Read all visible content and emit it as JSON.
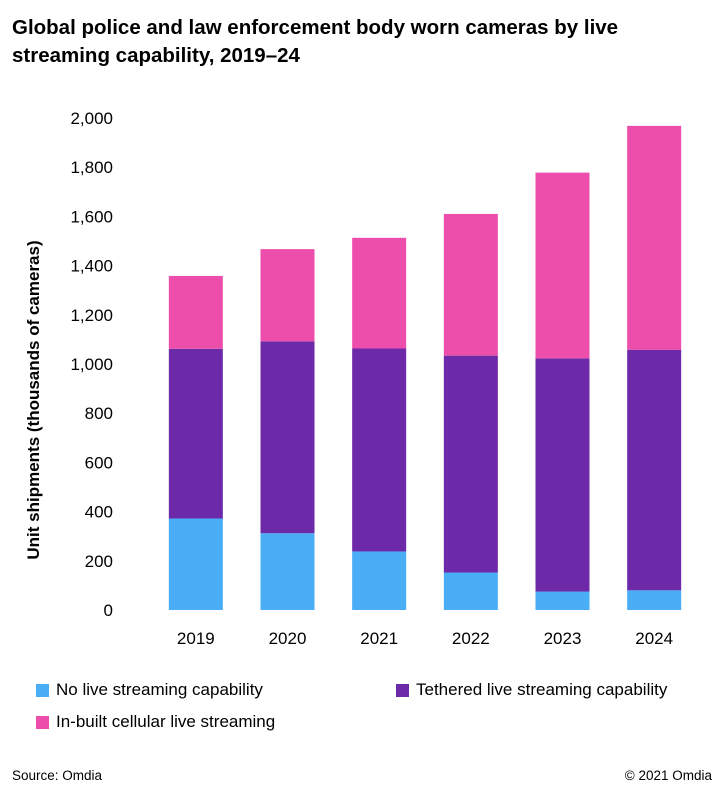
{
  "chart_data": {
    "type": "bar",
    "stacked": true,
    "title": "Global police and law enforcement body worn cameras by live streaming capability, 2019–24",
    "xlabel": "",
    "ylabel": "Unit shipments (thousands of cameras)",
    "ylim": [
      0,
      2000
    ],
    "yticks": [
      "0",
      "200",
      "400",
      "600",
      "800",
      "1,000",
      "1,200",
      "1,400",
      "1,600",
      "1,800",
      "2,000"
    ],
    "grid": false,
    "legend_position": "bottom",
    "categories": [
      "2019",
      "2020",
      "2021",
      "2022",
      "2023",
      "2024"
    ],
    "series": [
      {
        "name": "No live streaming capability",
        "color": "#4aaef7",
        "values": [
          372,
          312,
          238,
          152,
          75,
          80
        ]
      },
      {
        "name": "Tethered live streaming capability",
        "color": "#6c2aa8",
        "values": [
          690,
          780,
          825,
          882,
          948,
          978
        ]
      },
      {
        "name": "In-built cellular live streaming",
        "color": "#ee4eab",
        "values": [
          296,
          375,
          450,
          576,
          755,
          910
        ]
      }
    ]
  },
  "footer": {
    "source": "Source: Omdia",
    "copyright": "© 2021 Omdia"
  }
}
